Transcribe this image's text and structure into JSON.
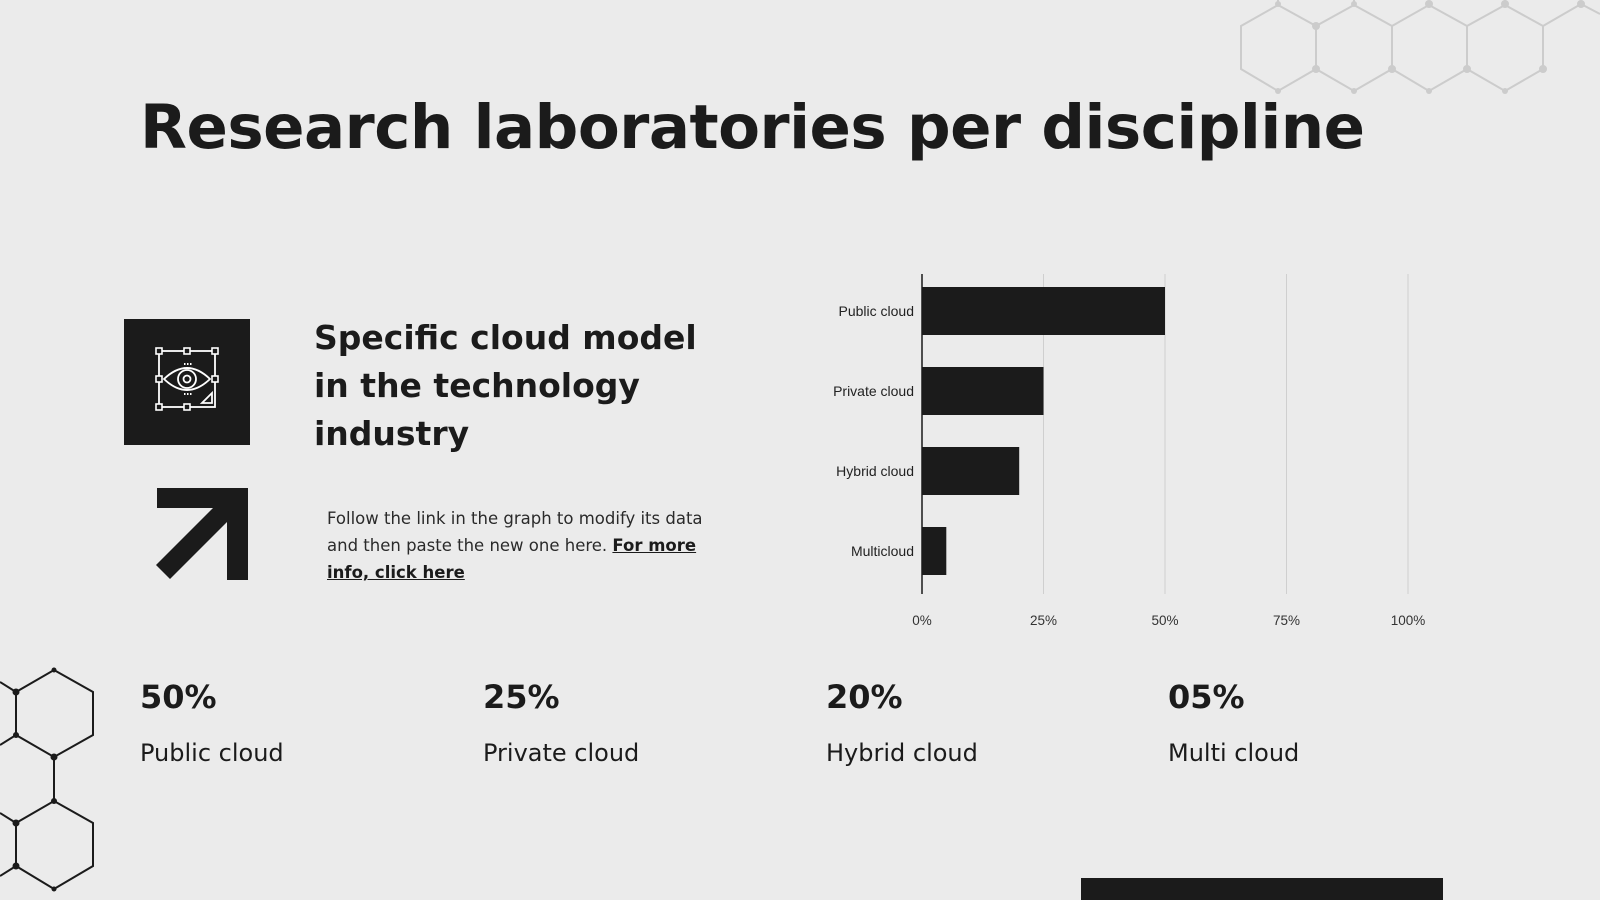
{
  "page": {
    "title": "Research laboratories per discipline"
  },
  "intro": {
    "icon": "eye-selection-icon",
    "arrow_icon": "arrow-up-right-icon",
    "subtitle": "Specific cloud model in the technology industry",
    "description": "Follow the link in the graph to modify its data and then paste the new one here. ",
    "link_text": "For more info, click here"
  },
  "stats": [
    {
      "value": "50%",
      "label": "Public cloud"
    },
    {
      "value": "25%",
      "label": "Private cloud"
    },
    {
      "value": "20%",
      "label": "Hybrid cloud"
    },
    {
      "value": "05%",
      "label": "Multi cloud"
    }
  ],
  "chart_data": {
    "type": "bar",
    "orientation": "horizontal",
    "title": "",
    "xlabel": "",
    "ylabel": "",
    "categories": [
      "Public cloud",
      "Private cloud",
      "Hybrid cloud",
      "Multicloud"
    ],
    "values": [
      50,
      25,
      20,
      5
    ],
    "unit": "%",
    "xlim": [
      0,
      100
    ],
    "xticks": [
      "0%",
      "25%",
      "50%",
      "75%",
      "100%"
    ],
    "grid": "vertical",
    "legend": "none",
    "bar_color": "#1b1b1b"
  },
  "colors": {
    "background": "#ebebeb",
    "ink": "#1b1b1b",
    "grid": "#cfcfcf",
    "hex_light": "#cccccc"
  }
}
